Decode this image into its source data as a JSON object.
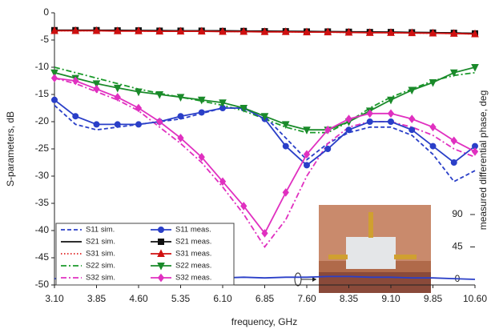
{
  "chart_data": {
    "type": "line",
    "xlabel": "frequency, GHz",
    "ylabel": "S-parameters, dB",
    "y2label": "measured differential phase, deg",
    "x": [
      3.1,
      3.475,
      3.85,
      4.225,
      4.6,
      4.975,
      5.35,
      5.725,
      6.1,
      6.475,
      6.85,
      7.225,
      7.6,
      7.975,
      8.35,
      8.725,
      9.1,
      9.475,
      9.85,
      10.225,
      10.6
    ],
    "xlim": [
      3.1,
      10.6
    ],
    "xticks": [
      {
        "value": 3.1,
        "label": "3.10"
      },
      {
        "value": 3.85,
        "label": "3.85"
      },
      {
        "value": 4.6,
        "label": "4.60"
      },
      {
        "value": 5.35,
        "label": "5.35"
      },
      {
        "value": 6.1,
        "label": "6.10"
      },
      {
        "value": 6.85,
        "label": "6.85"
      },
      {
        "value": 7.6,
        "label": "7.60"
      },
      {
        "value": 8.35,
        "label": "8.35"
      },
      {
        "value": 9.1,
        "label": "9.10"
      },
      {
        "value": 9.85,
        "label": "9.85"
      },
      {
        "value": 10.6,
        "label": "10.60"
      }
    ],
    "ylim": [
      -50,
      0
    ],
    "yticks": [
      0,
      -5,
      -10,
      -15,
      -20,
      -25,
      -30,
      -35,
      -40,
      -45,
      -50
    ],
    "y2lim": [
      -7.8,
      370
    ],
    "y2ticks": [
      0,
      45,
      90
    ],
    "series": [
      {
        "name": "S11 sim.",
        "color": "#2a3fc8",
        "dash": "dashed",
        "values": [
          -17,
          -20.5,
          -21.5,
          -21,
          -20.5,
          -20,
          -19.5,
          -18.5,
          -17.5,
          -17.5,
          -19,
          -23,
          -27,
          -24,
          -22,
          -21,
          -21,
          -22.5,
          -26,
          -31,
          -29
        ]
      },
      {
        "name": "S21 sim.",
        "color": "#111111",
        "dash": "solid",
        "values": [
          -3.2,
          -3.2,
          -3.2,
          -3.2,
          -3.25,
          -3.25,
          -3.3,
          -3.3,
          -3.3,
          -3.35,
          -3.35,
          -3.4,
          -3.4,
          -3.45,
          -3.5,
          -3.5,
          -3.55,
          -3.6,
          -3.65,
          -3.7,
          -3.8
        ]
      },
      {
        "name": "S31 sim.",
        "color": "#e02020",
        "dash": "dotted",
        "values": [
          -3.3,
          -3.3,
          -3.3,
          -3.3,
          -3.35,
          -3.35,
          -3.4,
          -3.4,
          -3.4,
          -3.45,
          -3.45,
          -3.5,
          -3.5,
          -3.55,
          -3.6,
          -3.6,
          -3.65,
          -3.7,
          -3.75,
          -3.8,
          -3.9
        ]
      },
      {
        "name": "S22 sim.",
        "color": "#1a9a2a",
        "dash": "dashdot",
        "values": [
          -10,
          -11,
          -12,
          -13,
          -14,
          -14.8,
          -15.5,
          -16.2,
          -17,
          -18,
          -19.5,
          -21,
          -22,
          -22,
          -20,
          -17.5,
          -15.5,
          -14,
          -12.5,
          -11.5,
          -11
        ]
      },
      {
        "name": "S32 sim.",
        "color": "#e030c0",
        "dash": "dashdot",
        "values": [
          -12,
          -13,
          -14.5,
          -16,
          -18,
          -21,
          -24,
          -27.5,
          -32,
          -37,
          -43,
          -38,
          -30,
          -24,
          -21,
          -20,
          -20,
          -21,
          -22.5,
          -25,
          -26.5
        ]
      },
      {
        "name": "S11 meas.",
        "color": "#2a3fc8",
        "dash": "solid",
        "marker": "circle",
        "values": [
          -16,
          -19,
          -20.5,
          -20.5,
          -20.5,
          -20,
          -19,
          -18.3,
          -17.5,
          -17.5,
          -19.5,
          -24.5,
          -28,
          -25,
          -21.5,
          -20,
          -20,
          -21.5,
          -24.5,
          -27.5,
          -24.5
        ]
      },
      {
        "name": "S21 meas.",
        "color": "#111111",
        "dash": "solid",
        "marker": "square",
        "values": [
          -3.2,
          -3.2,
          -3.2,
          -3.25,
          -3.25,
          -3.3,
          -3.3,
          -3.3,
          -3.35,
          -3.35,
          -3.4,
          -3.4,
          -3.45,
          -3.45,
          -3.5,
          -3.55,
          -3.55,
          -3.6,
          -3.65,
          -3.7,
          -3.8
        ]
      },
      {
        "name": "S31 meas.",
        "color": "#d01010",
        "dash": "solid",
        "marker": "triangle-up",
        "values": [
          -3.3,
          -3.3,
          -3.3,
          -3.35,
          -3.35,
          -3.4,
          -3.4,
          -3.4,
          -3.45,
          -3.45,
          -3.5,
          -3.5,
          -3.55,
          -3.55,
          -3.6,
          -3.65,
          -3.65,
          -3.7,
          -3.75,
          -3.8,
          -3.9
        ]
      },
      {
        "name": "S22 meas.",
        "color": "#1a8a2a",
        "dash": "solid",
        "marker": "triangle-down",
        "values": [
          -11,
          -12,
          -13,
          -13.8,
          -14.5,
          -15,
          -15.5,
          -16,
          -16.5,
          -17.5,
          -19,
          -20.5,
          -21.5,
          -21.5,
          -20,
          -18,
          -16,
          -14.2,
          -12.8,
          -11,
          -10
        ]
      },
      {
        "name": "S32 meas.",
        "color": "#e030c0",
        "dash": "solid",
        "marker": "diamond",
        "values": [
          -12,
          -12.5,
          -14,
          -15.5,
          -17.5,
          -20,
          -23,
          -26.5,
          -31,
          -35.5,
          -40.5,
          -33,
          -26,
          -21.5,
          -19.5,
          -18.5,
          -18.5,
          -19.5,
          -21,
          -23.5,
          -25.5
        ]
      },
      {
        "color": "#2a3fc8",
        "dash": "solid",
        "axis": "y2",
        "values": [
          1,
          2,
          2,
          3,
          4,
          2,
          3,
          3,
          2,
          3,
          2,
          3,
          3,
          4,
          4,
          3,
          3,
          2,
          2,
          1,
          0
        ]
      }
    ]
  }
}
